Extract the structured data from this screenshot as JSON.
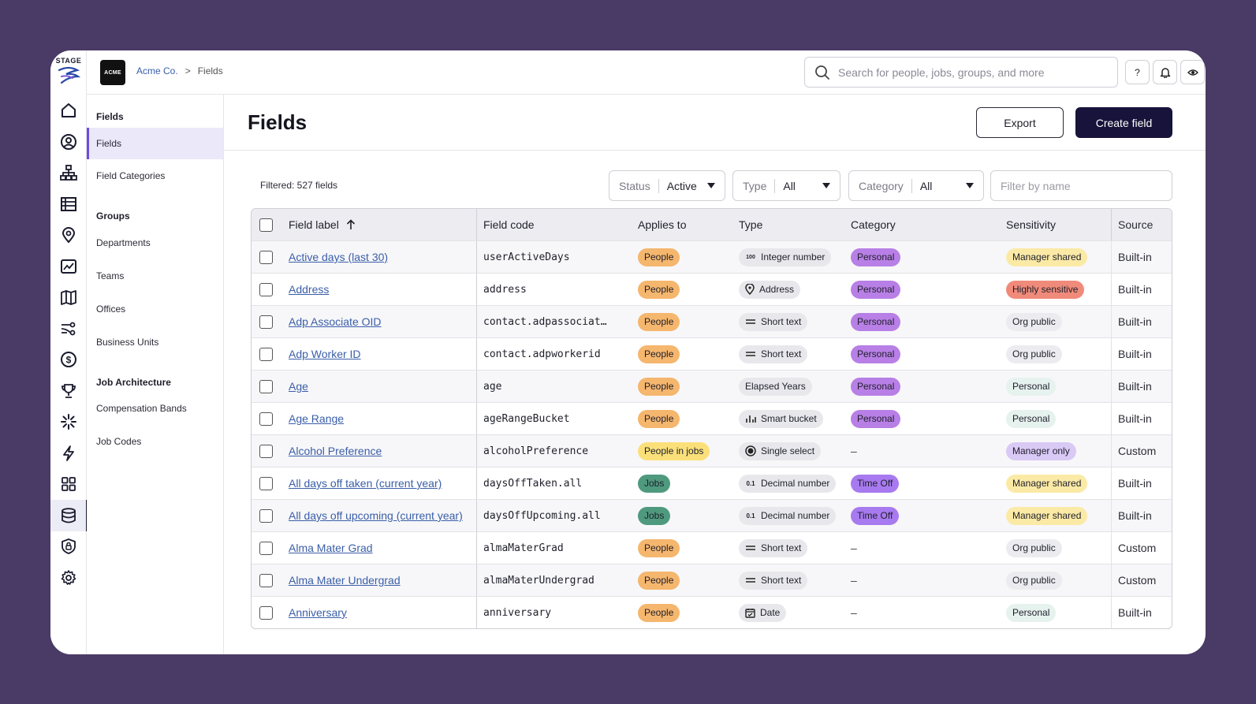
{
  "rail": {
    "logo_text": "STAGE"
  },
  "topbar": {
    "company_badge": "ACME",
    "breadcrumb": [
      "Acme Co.",
      ">",
      "Fields"
    ],
    "search_placeholder": "Search for people, jobs, groups, and more",
    "help_label": "?"
  },
  "subnav": {
    "section_fields": "Fields",
    "fields_items": [
      "Fields",
      "Field Categories"
    ],
    "section_groups": "Groups",
    "groups_items": [
      "Departments",
      "Teams",
      "Offices",
      "Business Units"
    ],
    "section_job": "Job Architecture",
    "job_items": [
      "Compensation Bands",
      "Job Codes"
    ]
  },
  "page": {
    "title": "Fields",
    "export_label": "Export",
    "create_label": "Create field",
    "filtered_text": "Filtered: 527 fields"
  },
  "filters": {
    "status_label": "Status",
    "status_value": "Active",
    "type_label": "Type",
    "type_value": "All",
    "category_label": "Category",
    "category_value": "All",
    "name_placeholder": "Filter by name"
  },
  "table": {
    "columns": [
      "Field label",
      "Field code",
      "Applies to",
      "Type",
      "Category",
      "Sensitivity",
      "Source"
    ],
    "rows": [
      {
        "label": "Active days (last 30)",
        "code": "userActiveDays",
        "applies": "People",
        "type": "Integer number",
        "type_icon": "100",
        "category": "Personal",
        "sensitivity": "Manager shared",
        "source": "Built-in"
      },
      {
        "label": "Address",
        "code": "address",
        "applies": "People",
        "type": "Address",
        "type_icon": "pin",
        "category": "Personal",
        "sensitivity": "Highly sensitive",
        "source": "Built-in"
      },
      {
        "label": "Adp Associate OID",
        "code": "contact.adpassociat…",
        "applies": "People",
        "type": "Short text",
        "type_icon": "lines",
        "category": "Personal",
        "sensitivity": "Org public",
        "source": "Built-in"
      },
      {
        "label": "Adp Worker ID",
        "code": "contact.adpworkerid",
        "applies": "People",
        "type": "Short text",
        "type_icon": "lines",
        "category": "Personal",
        "sensitivity": "Org public",
        "source": "Built-in"
      },
      {
        "label": "Age",
        "code": "age",
        "applies": "People",
        "type": "Elapsed Years",
        "type_icon": "",
        "category": "Personal",
        "sensitivity": "Personal",
        "source": "Built-in"
      },
      {
        "label": "Age Range",
        "code": "ageRangeBucket",
        "applies": "People",
        "type": "Smart bucket",
        "type_icon": "bars",
        "category": "Personal",
        "sensitivity": "Personal",
        "source": "Built-in"
      },
      {
        "label": "Alcohol Preference",
        "code": "alcoholPreference",
        "applies": "People in jobs",
        "type": "Single select",
        "type_icon": "radio",
        "category": "–",
        "sensitivity": "Manager only",
        "source": "Custom"
      },
      {
        "label": "All days off taken (current year)",
        "code": "daysOffTaken.all",
        "applies": "Jobs",
        "type": "Decimal number",
        "type_icon": "0.1",
        "category": "Time Off",
        "sensitivity": "Manager shared",
        "source": "Built-in"
      },
      {
        "label": "All days off upcoming (current year)",
        "code": "daysOffUpcoming.all",
        "applies": "Jobs",
        "type": "Decimal number",
        "type_icon": "0.1",
        "category": "Time Off",
        "sensitivity": "Manager shared",
        "source": "Built-in"
      },
      {
        "label": "Alma Mater Grad",
        "code": "almaMaterGrad",
        "applies": "People",
        "type": "Short text",
        "type_icon": "lines",
        "category": "–",
        "sensitivity": "Org public",
        "source": "Custom"
      },
      {
        "label": "Alma Mater Undergrad",
        "code": "almaMaterUndergrad",
        "applies": "People",
        "type": "Short text",
        "type_icon": "lines",
        "category": "–",
        "sensitivity": "Org public",
        "source": "Custom"
      },
      {
        "label": "Anniversary",
        "code": "anniversary",
        "applies": "People",
        "type": "Date",
        "type_icon": "calendar",
        "category": "–",
        "sensitivity": "Personal",
        "source": "Built-in"
      }
    ]
  }
}
